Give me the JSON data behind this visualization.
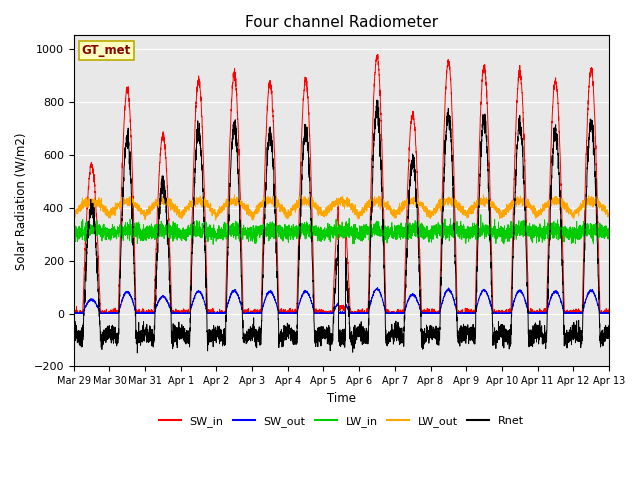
{
  "title": "Four channel Radiometer",
  "ylabel": "Solar Radiation (W/m2)",
  "xlabel": "Time",
  "ylim": [
    -200,
    1050
  ],
  "background_color": "#e8e8e8",
  "gt_met_label": "GT_met",
  "tick_labels": [
    "Mar 29",
    "Mar 30",
    "Mar 31",
    "Apr 1",
    "Apr 2",
    "Apr 3",
    "Apr 4",
    "Apr 5",
    "Apr 6",
    "Apr 7",
    "Apr 8",
    "Apr 9",
    "Apr 10",
    "Apr 11",
    "Apr 12",
    "Apr 13"
  ],
  "yticks": [
    -200,
    0,
    200,
    400,
    600,
    800,
    1000
  ],
  "n_days": 15,
  "n_per_day": 288,
  "day_peaks_sw_in": [
    560,
    850,
    670,
    880,
    900,
    870,
    880,
    470,
    970,
    750,
    950,
    930,
    910,
    880,
    920
  ],
  "lw_in_base": 300,
  "lw_out_base": 370,
  "legend_entries": [
    {
      "label": "SW_in",
      "color": "#ff0000"
    },
    {
      "label": "SW_out",
      "color": "#0000ff"
    },
    {
      "label": "LW_in",
      "color": "#00cc00"
    },
    {
      "label": "LW_out",
      "color": "#ffa500"
    },
    {
      "label": "Rnet",
      "color": "#000000"
    }
  ]
}
